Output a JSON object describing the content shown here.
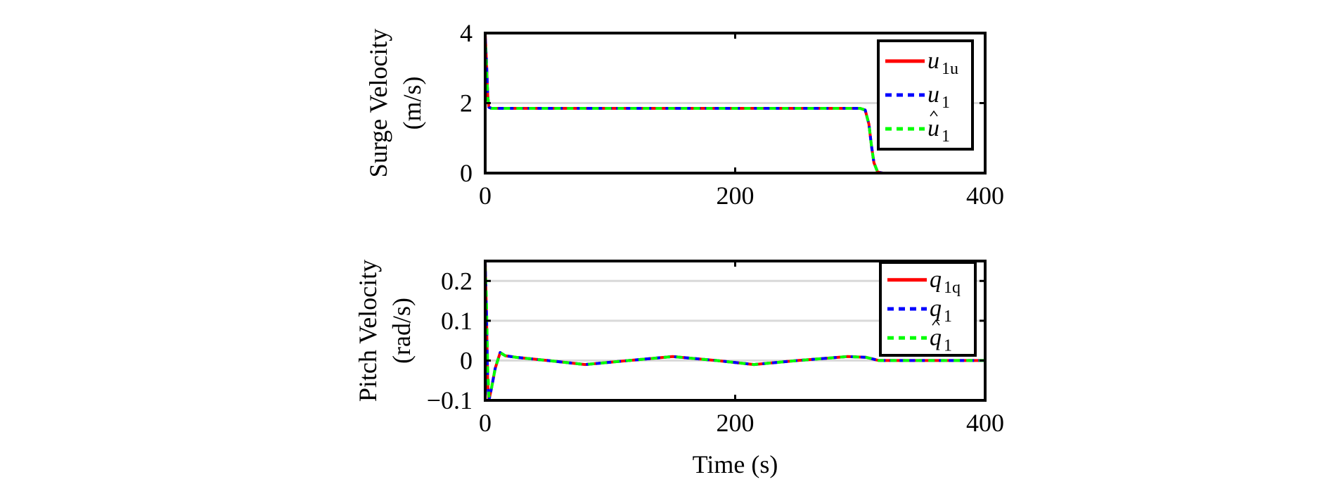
{
  "chart_data": [
    {
      "type": "line",
      "ylabel_lines": [
        "Surge Velocity",
        "(m/s)"
      ],
      "xlabel": "",
      "xlim": [
        0,
        400
      ],
      "ylim": [
        0,
        4
      ],
      "xticks": [
        0,
        200,
        400
      ],
      "yticks": [
        0,
        2,
        4
      ],
      "ytick_labels": [
        "0",
        "2",
        "4"
      ],
      "xtick_labels": [
        "0",
        "200",
        "400"
      ],
      "grid": true,
      "legend_position": "top-right",
      "legend": [
        {
          "base": "u",
          "sub": "1u",
          "hat": false
        },
        {
          "base": "u",
          "sub": "1",
          "hat": false
        },
        {
          "base": "u",
          "sub": "1",
          "hat": true
        }
      ],
      "series": [
        {
          "name": "u_1u",
          "color": "#ff0000",
          "style": "solid",
          "points": [
            [
              0,
              0
            ],
            [
              0,
              4
            ],
            [
              1,
              3.2
            ],
            [
              2,
              2.2
            ],
            [
              3,
              1.88
            ],
            [
              5,
              1.85
            ],
            [
              300,
              1.85
            ],
            [
              304,
              1.8
            ],
            [
              307,
              1.4
            ],
            [
              309,
              0.8
            ],
            [
              311,
              0.3
            ],
            [
              314,
              0.03
            ],
            [
              318,
              0
            ],
            [
              400,
              0
            ]
          ]
        },
        {
          "name": "u_1",
          "color": "#0000ff",
          "style": "dashed",
          "points": [
            [
              0,
              0
            ],
            [
              0,
              3.9
            ],
            [
              1,
              3.2
            ],
            [
              2,
              2.2
            ],
            [
              3,
              1.88
            ],
            [
              5,
              1.85
            ],
            [
              300,
              1.85
            ],
            [
              304,
              1.8
            ],
            [
              307,
              1.4
            ],
            [
              309,
              0.8
            ],
            [
              311,
              0.3
            ],
            [
              314,
              0.03
            ],
            [
              318,
              0
            ],
            [
              400,
              0
            ]
          ]
        },
        {
          "name": "u_1 hat",
          "color": "#00ff00",
          "style": "dashed",
          "points": [
            [
              0,
              0
            ],
            [
              0,
              3.8
            ],
            [
              1,
              3.0
            ],
            [
              2,
              2.2
            ],
            [
              3,
              1.88
            ],
            [
              5,
              1.85
            ],
            [
              300,
              1.85
            ],
            [
              304,
              1.8
            ],
            [
              307,
              1.4
            ],
            [
              309,
              0.8
            ],
            [
              311,
              0.3
            ],
            [
              314,
              0.03
            ],
            [
              318,
              0
            ],
            [
              400,
              0
            ]
          ]
        }
      ]
    },
    {
      "type": "line",
      "ylabel_lines": [
        "Pitch Velocity",
        "(rad/s)"
      ],
      "xlabel": "Time (s)",
      "xlim": [
        0,
        400
      ],
      "ylim": [
        -0.1,
        0.25
      ],
      "xticks": [
        0,
        200,
        400
      ],
      "yticks": [
        -0.1,
        0,
        0.1,
        0.2
      ],
      "ytick_labels": [
        "−0.1",
        "0",
        "0.1",
        "0.2"
      ],
      "xtick_labels": [
        "0",
        "200",
        "400"
      ],
      "grid": true,
      "legend_position": "top-right",
      "legend": [
        {
          "base": "q",
          "sub": "1q",
          "hat": false
        },
        {
          "base": "q",
          "sub": "1",
          "hat": false
        },
        {
          "base": "q",
          "sub": "1",
          "hat": true
        }
      ],
      "series": [
        {
          "name": "q_1q",
          "color": "#ff0000",
          "style": "solid",
          "points": [
            [
              0,
              0.25
            ],
            [
              1,
              0.12
            ],
            [
              2,
              -0.06
            ],
            [
              3,
              -0.1
            ],
            [
              5,
              -0.07
            ],
            [
              8,
              -0.02
            ],
            [
              12,
              0.02
            ],
            [
              16,
              0.012
            ],
            [
              25,
              0.008
            ],
            [
              50,
              0.0
            ],
            [
              80,
              -0.01
            ],
            [
              115,
              0.0
            ],
            [
              150,
              0.01
            ],
            [
              185,
              0.0
            ],
            [
              215,
              -0.01
            ],
            [
              250,
              0.0
            ],
            [
              290,
              0.01
            ],
            [
              305,
              0.008
            ],
            [
              315,
              0.0
            ],
            [
              400,
              0.0
            ]
          ]
        },
        {
          "name": "q_1",
          "color": "#0000ff",
          "style": "dashed",
          "points": [
            [
              0,
              0.25
            ],
            [
              1,
              0.12
            ],
            [
              2,
              -0.06
            ],
            [
              3,
              -0.1
            ],
            [
              5,
              -0.07
            ],
            [
              8,
              -0.02
            ],
            [
              12,
              0.02
            ],
            [
              16,
              0.012
            ],
            [
              25,
              0.008
            ],
            [
              50,
              0.0
            ],
            [
              80,
              -0.01
            ],
            [
              115,
              0.0
            ],
            [
              150,
              0.01
            ],
            [
              185,
              0.0
            ],
            [
              215,
              -0.01
            ],
            [
              250,
              0.0
            ],
            [
              290,
              0.01
            ],
            [
              305,
              0.008
            ],
            [
              315,
              0.0
            ],
            [
              400,
              0.0
            ]
          ]
        },
        {
          "name": "q_1 hat",
          "color": "#00ff00",
          "style": "dashed",
          "points": [
            [
              0,
              0.24
            ],
            [
              1,
              0.15
            ],
            [
              2,
              -0.02
            ],
            [
              3,
              -0.09
            ],
            [
              5,
              -0.07
            ],
            [
              8,
              -0.02
            ],
            [
              12,
              0.02
            ],
            [
              16,
              0.012
            ],
            [
              25,
              0.008
            ],
            [
              50,
              0.0
            ],
            [
              80,
              -0.01
            ],
            [
              115,
              0.0
            ],
            [
              150,
              0.01
            ],
            [
              185,
              0.0
            ],
            [
              215,
              -0.01
            ],
            [
              250,
              0.0
            ],
            [
              290,
              0.01
            ],
            [
              305,
              0.008
            ],
            [
              315,
              0.0
            ],
            [
              400,
              0.0
            ]
          ]
        }
      ]
    }
  ]
}
